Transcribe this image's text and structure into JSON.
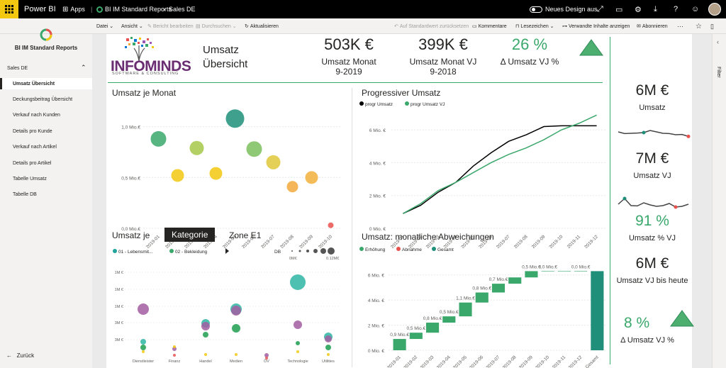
{
  "topbar": {
    "app": "Power BI",
    "apps": "Apps",
    "workspace": "BI IM Standard Reports",
    "report": "Sales DE",
    "new_design": "Neues Design aus"
  },
  "cmdbar": {
    "file": "Datei",
    "view": "Ansicht",
    "edit": "Bericht bearbeiten",
    "explore": "Durchsuchen",
    "refresh": "Aktualisieren",
    "reset": "Auf Standardwert zurücksetzen",
    "comments": "Kommentare",
    "bookmarks": "Lesezeichen",
    "related": "Verwandte Inhalte anzeigen",
    "subscribe": "Abonnieren",
    "more": "···"
  },
  "nav": {
    "title": "BI IM Standard Reports",
    "section": "Sales DE",
    "items": [
      "Umsatz Übersicht",
      "Deckungsbeitrag Übersicht",
      "Verkauf nach Kunden",
      "Details pro Kunde",
      "Verkauf nach Artikel",
      "Details pro Artikel",
      "Tabelle Umsatz",
      "Tabelle DB"
    ],
    "active_index": 0,
    "back": "Zurück"
  },
  "filter_label": "Filter",
  "colors": {
    "green": "#3aa86b",
    "teal": "#1f8f7a",
    "red": "#e9514f",
    "yellow": "#f2c811",
    "accent": "#0078d4"
  },
  "header": {
    "logo_main": "INFOMINDS",
    "logo_sub": "SOFTWARE & CONSULTING",
    "title1": "Umsatz",
    "title2": "Übersicht",
    "kpi1_value": "503K €",
    "kpi1_label": "Umsatz Monat",
    "kpi1_period": "9-2019",
    "kpi2_value": "399K €",
    "kpi2_label": "Umsatz Monat VJ",
    "kpi2_period": "9-2018",
    "kpi3_value": "26 %",
    "kpi3_label": "Δ Umsatz VJ %"
  },
  "cards": [
    {
      "value": "6M €",
      "label": "Umsatz"
    },
    {
      "value": "7M €",
      "label": "Umsatz VJ"
    },
    {
      "value": "91 %",
      "label": "Umsatz % VJ"
    },
    {
      "value": "6M €",
      "label": "Umsatz VJ bis heute"
    },
    {
      "value": "8 %",
      "label": "Δ Umsatz VJ %"
    }
  ],
  "chart_umsatz_monat": {
    "title": "Umsatz je Monat",
    "ytick_labels": [
      "1,0 Mio.€",
      "0,5 Mio.€",
      "0,0 Mio.€"
    ]
  },
  "chart_progressiv": {
    "title": "Progressiver Umsatz",
    "legend": [
      "progr Umsatz",
      "progr Umsatz VJ"
    ],
    "ytick_labels": [
      "6 Mio. €",
      "4 Mio. €",
      "2 Mio. €",
      "0 Mio. €"
    ]
  },
  "chart_kategorie": {
    "title": "Umsatz je",
    "tab_active": "Kategorie",
    "tab_other": "Zone E1",
    "legend": [
      "01 - Lebensmit...",
      "02 - Bekleidung"
    ],
    "size_legend_title": "DB",
    "size_min": "0M€",
    "size_max": "0.12M€",
    "ytick_labels": [
      "1M €",
      "1M €",
      "1M €",
      "3M €",
      "3M €"
    ]
  },
  "chart_abweichungen": {
    "title": "Umsatz: monatliche Abweichungen",
    "legend": [
      "Erhöhung",
      "Abnahme",
      "Gesamt"
    ],
    "ytick_labels": [
      "6 Mio. €",
      "4 Mio. €",
      "2 Mio. €",
      "0 Mio. €"
    ]
  },
  "chart_data": [
    {
      "type": "scatter",
      "title": "Umsatz je Monat",
      "x": [
        "2019-01",
        "2019-02",
        "2019-03",
        "2019-04",
        "2019-05",
        "2019-06",
        "2019-07",
        "2019-08",
        "2019-09",
        "2019-10"
      ],
      "y": [
        0.88,
        0.52,
        0.79,
        0.54,
        1.08,
        0.78,
        0.65,
        0.41,
        0.5,
        0.03
      ],
      "colors": [
        "#3aa86b",
        "#f2c811",
        "#a6c84a",
        "#f2c811",
        "#1f8f7a",
        "#7cbf5e",
        "#e0c83a",
        "#f2a93b",
        "#f2b03b",
        "#e9514f"
      ],
      "ylim": [
        0,
        1.2
      ],
      "yticks": [
        0,
        0.5,
        1.0
      ]
    },
    {
      "type": "line",
      "title": "Progressiver Umsatz",
      "x": [
        "2019-01",
        "2019-02",
        "2019-03",
        "2019-04",
        "2019-05",
        "2019-06",
        "2019-07",
        "2019-08",
        "2019-09",
        "2019-10",
        "2019-11",
        "2019-12"
      ],
      "series": [
        {
          "name": "progr Umsatz",
          "color": "#000000",
          "values": [
            0.9,
            1.4,
            2.2,
            2.8,
            3.8,
            4.6,
            5.3,
            5.7,
            6.2,
            6.25,
            6.25,
            6.25
          ]
        },
        {
          "name": "progr Umsatz VJ",
          "color": "#3aa86b",
          "values": [
            0.9,
            1.5,
            2.3,
            2.8,
            3.4,
            4.0,
            4.5,
            4.9,
            5.4,
            6.0,
            6.4,
            6.9
          ]
        }
      ],
      "ylim": [
        0,
        7
      ],
      "yticks": [
        0,
        2,
        4,
        6
      ]
    },
    {
      "type": "scatter",
      "title": "Umsatz je Kategorie",
      "categories": [
        "Dienstleister",
        "Finanz",
        "Handel",
        "Medien",
        "ÖV",
        "Technologie",
        "Utilities"
      ]
    },
    {
      "type": "bar",
      "title": "Umsatz: monatliche Abweichungen",
      "categories": [
        "2019-01",
        "2019-02",
        "2019-03",
        "2019-04",
        "2019-05",
        "2019-06",
        "2019-07",
        "2019-08",
        "2019-09",
        "2019-10",
        "2019-11",
        "2019-12",
        "Gesamt"
      ],
      "increments": [
        0.9,
        0.5,
        0.8,
        0.5,
        1.1,
        0.8,
        0.7,
        0.5,
        0.5,
        0.0,
        0.0,
        0.0
      ],
      "data_labels": [
        "0,9 Mio.€",
        "0,5 Mio.€",
        "0,8 Mio.€",
        "0,5 Mio.€",
        "1,1 Mio.€",
        "0,8 Mio.€",
        "0,7 Mio.€",
        "",
        "0,5 Mio.€",
        "0,0 Mio.€",
        "",
        "0,0 Mio.€",
        ""
      ],
      "total": 6.3,
      "ylim": [
        0,
        7
      ],
      "yticks": [
        0,
        2,
        4,
        6
      ]
    }
  ]
}
